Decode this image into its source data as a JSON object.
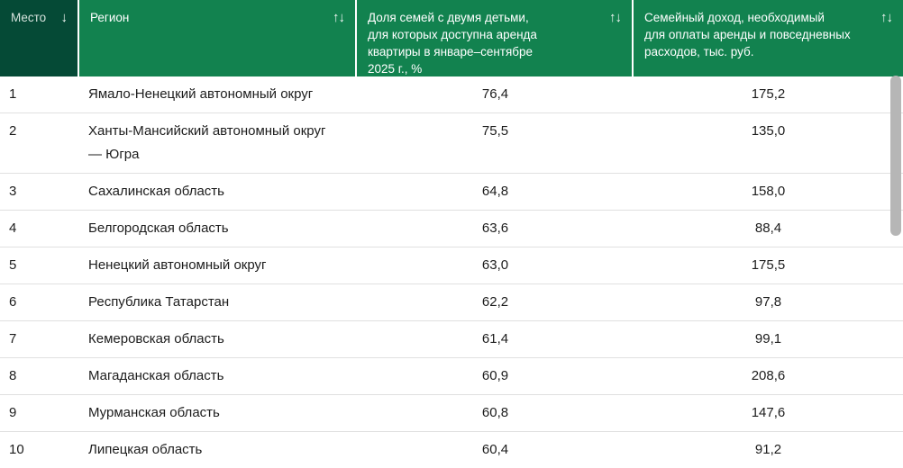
{
  "theme": {
    "header_green": "#12824F",
    "header_dark_green": "#054A36",
    "row_divider": "#e0e0e0",
    "body_text": "#1c1c1c",
    "scrollbar_thumb": "#b6b6b6"
  },
  "table": {
    "columns": [
      {
        "label": "Место",
        "icon": "↓",
        "icon_name": "sort-descending-icon",
        "sorted": true
      },
      {
        "label": "Регион",
        "icon": "↑↓",
        "icon_name": "sort-both-icon",
        "sorted": false
      },
      {
        "label": "Доля семей с двумя детьми,\nдля которых доступна аренда\nквартиры в январе–сентябре\n2025 г., %",
        "icon": "↑↓",
        "icon_name": "sort-both-icon",
        "sorted": false
      },
      {
        "label": "Семейный доход, необходимый\nдля оплаты аренды и повседневных\nрасходов, тыс. руб.",
        "icon": "↑↓",
        "icon_name": "sort-both-icon",
        "sorted": false
      }
    ],
    "rows": [
      {
        "rank": "1",
        "region": "Ямало-Ненецкий автономный округ",
        "share": "76,4",
        "income": "175,2"
      },
      {
        "rank": "2",
        "region": "Ханты-Мансийский автономный округ\n— Югра",
        "share": "75,5",
        "income": "135,0"
      },
      {
        "rank": "3",
        "region": "Сахалинская область",
        "share": "64,8",
        "income": "158,0"
      },
      {
        "rank": "4",
        "region": "Белгородская область",
        "share": "63,6",
        "income": "88,4"
      },
      {
        "rank": "5",
        "region": "Ненецкий автономный округ",
        "share": "63,0",
        "income": "175,5"
      },
      {
        "rank": "6",
        "region": "Республика Татарстан",
        "share": "62,2",
        "income": "97,8"
      },
      {
        "rank": "7",
        "region": "Кемеровская область",
        "share": "61,4",
        "income": "99,1"
      },
      {
        "rank": "8",
        "region": "Магаданская область",
        "share": "60,9",
        "income": "208,6"
      },
      {
        "rank": "9",
        "region": "Мурманская область",
        "share": "60,8",
        "income": "147,6"
      },
      {
        "rank": "10",
        "region": "Липецкая область",
        "share": "60,4",
        "income": "91,2"
      }
    ]
  }
}
